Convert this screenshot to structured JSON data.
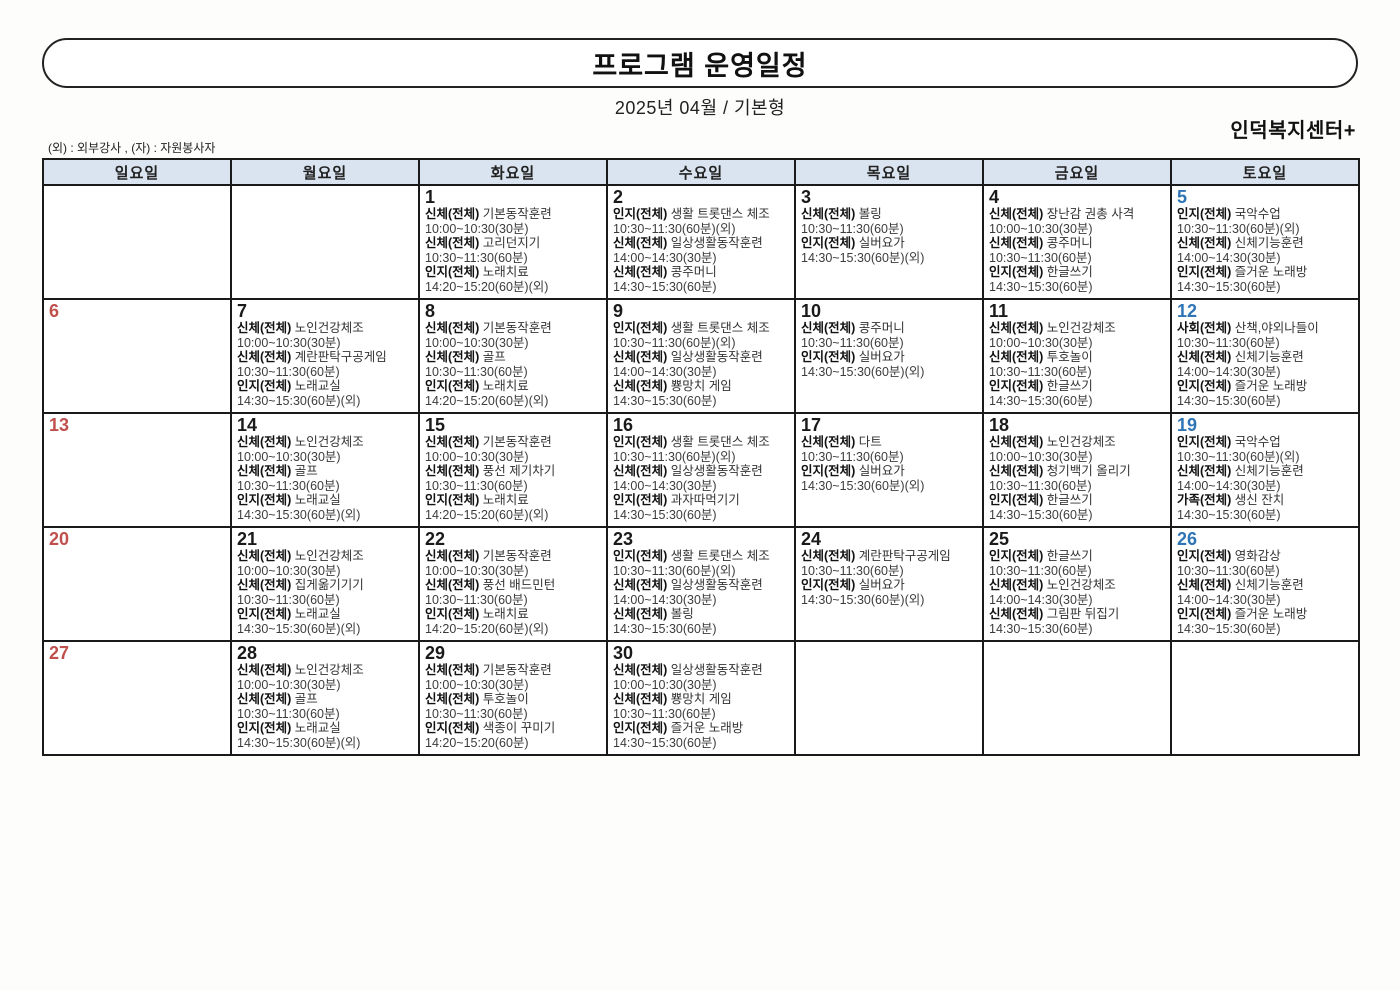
{
  "header": {
    "title": "프로그램 운영일정",
    "subtitle": "2025년 04월 / 기본형",
    "center_name": "인덕복지센터+",
    "legend": "(외) : 외부강사 , (자) : 자원봉사자"
  },
  "colors": {
    "sunday_red": "#c0504d",
    "saturday_blue": "#2e75b6",
    "weekday_black": "#1a1a1a",
    "header_row_bg": "#dae4f0",
    "border": "#1a1a1a"
  },
  "calendar": {
    "day_headers": [
      {
        "label": "일요일",
        "type": "sun"
      },
      {
        "label": "월요일",
        "type": "weekday"
      },
      {
        "label": "화요일",
        "type": "weekday"
      },
      {
        "label": "수요일",
        "type": "weekday"
      },
      {
        "label": "목요일",
        "type": "weekday"
      },
      {
        "label": "금요일",
        "type": "weekday"
      },
      {
        "label": "토요일",
        "type": "sat"
      }
    ],
    "weeks": [
      [
        {
          "day": "",
          "programs": []
        },
        {
          "day": "",
          "programs": []
        },
        {
          "day": "1",
          "programs": [
            {
              "category": "신체(전체)",
              "name": "기본동작훈련",
              "time": "10:00~10:30(30분)"
            },
            {
              "category": "신체(전체)",
              "name": "고리던지기",
              "time": "10:30~11:30(60분)"
            },
            {
              "category": "인지(전체)",
              "name": "노래치료",
              "time": "14:20~15:20(60분)(외)"
            }
          ]
        },
        {
          "day": "2",
          "programs": [
            {
              "category": "인지(전체)",
              "name": "생활 트롯댄스 체조",
              "time": "10:30~11:30(60분)(외)"
            },
            {
              "category": "신체(전체)",
              "name": "일상생활동작훈련",
              "time": "14:00~14:30(30분)"
            },
            {
              "category": "신체(전체)",
              "name": "콩주머니",
              "time": "14:30~15:30(60분)"
            }
          ]
        },
        {
          "day": "3",
          "programs": [
            {
              "category": "신체(전체)",
              "name": "볼링",
              "time": "10:30~11:30(60분)"
            },
            {
              "category": "인지(전체)",
              "name": "실버요가",
              "time": "14:30~15:30(60분)(외)"
            }
          ]
        },
        {
          "day": "4",
          "programs": [
            {
              "category": "신체(전체)",
              "name": "장난감 권총 사격",
              "time": "10:00~10:30(30분)"
            },
            {
              "category": "신체(전체)",
              "name": "콩주머니",
              "time": "10:30~11:30(60분)"
            },
            {
              "category": "인지(전체)",
              "name": "한글쓰기",
              "time": "14:30~15:30(60분)"
            }
          ]
        },
        {
          "day": "5",
          "programs": [
            {
              "category": "인지(전체)",
              "name": "국악수업",
              "time": "10:30~11:30(60분)(외)"
            },
            {
              "category": "신체(전체)",
              "name": "신체기능훈련",
              "time": "14:00~14:30(30분)"
            },
            {
              "category": "인지(전체)",
              "name": "즐거운 노래방",
              "time": "14:30~15:30(60분)"
            }
          ]
        }
      ],
      [
        {
          "day": "6",
          "programs": []
        },
        {
          "day": "7",
          "programs": [
            {
              "category": "신체(전체)",
              "name": "노인건강체조",
              "time": "10:00~10:30(30분)"
            },
            {
              "category": "신체(전체)",
              "name": "계란판탁구공게임",
              "time": "10:30~11:30(60분)"
            },
            {
              "category": "인지(전체)",
              "name": "노래교실",
              "time": "14:30~15:30(60분)(외)"
            }
          ]
        },
        {
          "day": "8",
          "programs": [
            {
              "category": "신체(전체)",
              "name": "기본동작훈련",
              "time": "10:00~10:30(30분)"
            },
            {
              "category": "신체(전체)",
              "name": "골프",
              "time": "10:30~11:30(60분)"
            },
            {
              "category": "인지(전체)",
              "name": "노래치료",
              "time": "14:20~15:20(60분)(외)"
            }
          ]
        },
        {
          "day": "9",
          "programs": [
            {
              "category": "인지(전체)",
              "name": "생활 트롯댄스 체조",
              "time": "10:30~11:30(60분)(외)"
            },
            {
              "category": "신체(전체)",
              "name": "일상생활동작훈련",
              "time": "14:00~14:30(30분)"
            },
            {
              "category": "신체(전체)",
              "name": "뿅망치 게임",
              "time": "14:30~15:30(60분)"
            }
          ]
        },
        {
          "day": "10",
          "programs": [
            {
              "category": "신체(전체)",
              "name": "콩주머니",
              "time": "10:30~11:30(60분)"
            },
            {
              "category": "인지(전체)",
              "name": "실버요가",
              "time": "14:30~15:30(60분)(외)"
            }
          ]
        },
        {
          "day": "11",
          "programs": [
            {
              "category": "신체(전체)",
              "name": "노인건강체조",
              "time": "10:00~10:30(30분)"
            },
            {
              "category": "신체(전체)",
              "name": "투호놀이",
              "time": "10:30~11:30(60분)"
            },
            {
              "category": "인지(전체)",
              "name": "한글쓰기",
              "time": "14:30~15:30(60분)"
            }
          ]
        },
        {
          "day": "12",
          "programs": [
            {
              "category": "사회(전체)",
              "name": "산책,야외나들이",
              "time": "10:30~11:30(60분)"
            },
            {
              "category": "신체(전체)",
              "name": "신체기능훈련",
              "time": "14:00~14:30(30분)"
            },
            {
              "category": "인지(전체)",
              "name": "즐거운 노래방",
              "time": "14:30~15:30(60분)"
            }
          ]
        }
      ],
      [
        {
          "day": "13",
          "programs": []
        },
        {
          "day": "14",
          "programs": [
            {
              "category": "신체(전체)",
              "name": "노인건강체조",
              "time": "10:00~10:30(30분)"
            },
            {
              "category": "신체(전체)",
              "name": "골프",
              "time": "10:30~11:30(60분)"
            },
            {
              "category": "인지(전체)",
              "name": "노래교실",
              "time": "14:30~15:30(60분)(외)"
            }
          ]
        },
        {
          "day": "15",
          "programs": [
            {
              "category": "신체(전체)",
              "name": "기본동작훈련",
              "time": "10:00~10:30(30분)"
            },
            {
              "category": "신체(전체)",
              "name": "풍선 제기차기",
              "time": "10:30~11:30(60분)"
            },
            {
              "category": "인지(전체)",
              "name": "노래치료",
              "time": "14:20~15:20(60분)(외)"
            }
          ]
        },
        {
          "day": "16",
          "programs": [
            {
              "category": "인지(전체)",
              "name": "생활 트롯댄스 체조",
              "time": "10:30~11:30(60분)(외)"
            },
            {
              "category": "신체(전체)",
              "name": "일상생활동작훈련",
              "time": "14:00~14:30(30분)"
            },
            {
              "category": "인지(전체)",
              "name": "과자따먹기기",
              "time": "14:30~15:30(60분)"
            }
          ]
        },
        {
          "day": "17",
          "programs": [
            {
              "category": "신체(전체)",
              "name": "다트",
              "time": "10:30~11:30(60분)"
            },
            {
              "category": "인지(전체)",
              "name": "실버요가",
              "time": "14:30~15:30(60분)(외)"
            }
          ]
        },
        {
          "day": "18",
          "programs": [
            {
              "category": "신체(전체)",
              "name": "노인건강체조",
              "time": "10:00~10:30(30분)"
            },
            {
              "category": "신체(전체)",
              "name": "청기백기 올리기",
              "time": "10:30~11:30(60분)"
            },
            {
              "category": "인지(전체)",
              "name": "한글쓰기",
              "time": "14:30~15:30(60분)"
            }
          ]
        },
        {
          "day": "19",
          "programs": [
            {
              "category": "인지(전체)",
              "name": "국악수업",
              "time": "10:30~11:30(60분)(외)"
            },
            {
              "category": "신체(전체)",
              "name": "신체기능훈련",
              "time": "14:00~14:30(30분)"
            },
            {
              "category": "가족(전체)",
              "name": "생신 잔치",
              "time": "14:30~15:30(60분)"
            }
          ]
        }
      ],
      [
        {
          "day": "20",
          "programs": []
        },
        {
          "day": "21",
          "programs": [
            {
              "category": "신체(전체)",
              "name": "노인건강체조",
              "time": "10:00~10:30(30분)"
            },
            {
              "category": "신체(전체)",
              "name": "집게옮기기기",
              "time": "10:30~11:30(60분)"
            },
            {
              "category": "인지(전체)",
              "name": "노래교실",
              "time": "14:30~15:30(60분)(외)"
            }
          ]
        },
        {
          "day": "22",
          "programs": [
            {
              "category": "신체(전체)",
              "name": "기본동작훈련",
              "time": "10:00~10:30(30분)"
            },
            {
              "category": "신체(전체)",
              "name": "풍선 배드민턴",
              "time": "10:30~11:30(60분)"
            },
            {
              "category": "인지(전체)",
              "name": "노래치료",
              "time": "14:20~15:20(60분)(외)"
            }
          ]
        },
        {
          "day": "23",
          "programs": [
            {
              "category": "인지(전체)",
              "name": "생활 트롯댄스 체조",
              "time": "10:30~11:30(60분)(외)"
            },
            {
              "category": "신체(전체)",
              "name": "일상생활동작훈련",
              "time": "14:00~14:30(30분)"
            },
            {
              "category": "신체(전체)",
              "name": "볼링",
              "time": "14:30~15:30(60분)"
            }
          ]
        },
        {
          "day": "24",
          "programs": [
            {
              "category": "신체(전체)",
              "name": "계란판탁구공게임",
              "time": "10:30~11:30(60분)"
            },
            {
              "category": "인지(전체)",
              "name": "실버요가",
              "time": "14:30~15:30(60분)(외)"
            }
          ]
        },
        {
          "day": "25",
          "programs": [
            {
              "category": "인지(전체)",
              "name": "한글쓰기",
              "time": "10:30~11:30(60분)"
            },
            {
              "category": "신체(전체)",
              "name": "노인건강체조",
              "time": "14:00~14:30(30분)"
            },
            {
              "category": "신체(전체)",
              "name": "그림판 뒤집기",
              "time": "14:30~15:30(60분)"
            }
          ]
        },
        {
          "day": "26",
          "programs": [
            {
              "category": "인지(전체)",
              "name": "영화감상",
              "time": "10:30~11:30(60분)"
            },
            {
              "category": "신체(전체)",
              "name": "신체기능훈련",
              "time": "14:00~14:30(30분)"
            },
            {
              "category": "인지(전체)",
              "name": "즐거운 노래방",
              "time": "14:30~15:30(60분)"
            }
          ]
        }
      ],
      [
        {
          "day": "27",
          "programs": []
        },
        {
          "day": "28",
          "programs": [
            {
              "category": "신체(전체)",
              "name": "노인건강체조",
              "time": "10:00~10:30(30분)"
            },
            {
              "category": "신체(전체)",
              "name": "골프",
              "time": "10:30~11:30(60분)"
            },
            {
              "category": "인지(전체)",
              "name": "노래교실",
              "time": "14:30~15:30(60분)(외)"
            }
          ]
        },
        {
          "day": "29",
          "programs": [
            {
              "category": "신체(전체)",
              "name": "기본동작훈련",
              "time": "10:00~10:30(30분)"
            },
            {
              "category": "신체(전체)",
              "name": "투호놀이",
              "time": "10:30~11:30(60분)"
            },
            {
              "category": "인지(전체)",
              "name": "색종이 꾸미기",
              "time": "14:20~15:20(60분)"
            }
          ]
        },
        {
          "day": "30",
          "programs": [
            {
              "category": "신체(전체)",
              "name": "일상생활동작훈련",
              "time": "10:00~10:30(30분)"
            },
            {
              "category": "신체(전체)",
              "name": "뿅망치 게임",
              "time": "10:30~11:30(60분)"
            },
            {
              "category": "인지(전체)",
              "name": "즐거운 노래방",
              "time": "14:30~15:30(60분)"
            }
          ]
        },
        {
          "day": "",
          "programs": []
        },
        {
          "day": "",
          "programs": []
        },
        {
          "day": "",
          "programs": []
        }
      ]
    ]
  }
}
